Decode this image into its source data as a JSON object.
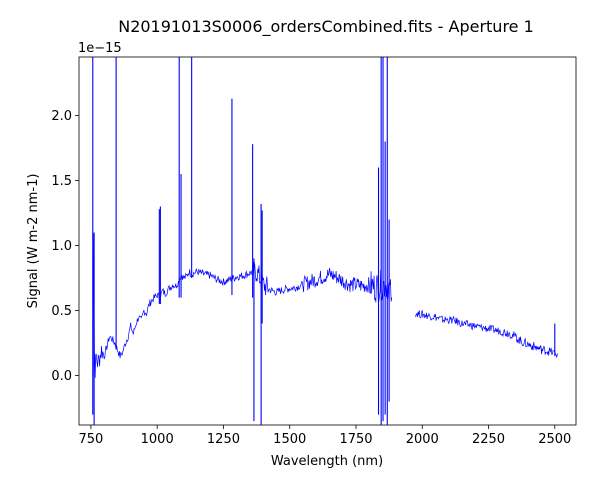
{
  "chart_data": {
    "type": "line",
    "title": "N20191013S0006_ordersCombined.fits - Aperture 1",
    "xlabel": "Wavelength (nm)",
    "ylabel": "Signal (W m-2 nm-1)",
    "y_offset_label": "1e−15",
    "xlim": [
      705,
      2580
    ],
    "ylim": [
      -0.38,
      2.45
    ],
    "x_ticks": [
      750,
      1000,
      1250,
      1500,
      1750,
      2000,
      2250,
      2500
    ],
    "y_ticks": [
      0.0,
      0.5,
      1.0,
      1.5,
      2.0
    ],
    "x_tick_labels": [
      "750",
      "1000",
      "1250",
      "1500",
      "1750",
      "2000",
      "2250",
      "2500"
    ],
    "y_tick_labels": [
      "0.0",
      "0.5",
      "1.0",
      "1.5",
      "2.0"
    ],
    "grid": false,
    "series_color": "#0000ff",
    "series": [
      {
        "segments": [
          {
            "x": [
              757,
              760,
              763,
              766,
              770,
              775,
              780,
              790,
              800,
              810,
              820,
              830,
              840,
              850,
              860,
              870,
              880,
              890,
              900,
              910,
              920,
              930,
              940,
              950,
              960,
              970,
              980,
              990,
              1000,
              1010,
              1020,
              1030,
              1040,
              1050,
              1060,
              1070,
              1080,
              1090,
              1100,
              1110,
              1120,
              1130,
              1140,
              1150,
              1175,
              1200,
              1225,
              1250,
              1275,
              1300,
              1325,
              1350,
              1375,
              1400,
              1425,
              1450,
              1475,
              1500,
              1525,
              1550,
              1575,
              1600,
              1625,
              1650,
              1675,
              1700,
              1725,
              1750,
              1775,
              1800,
              1825,
              1850,
              1870,
              1885
            ],
            "y": [
              0.0,
              1.15,
              0.2,
              0.05,
              0.15,
              0.1,
              0.12,
              0.2,
              0.15,
              0.22,
              0.3,
              0.28,
              0.25,
              0.2,
              0.15,
              0.18,
              0.25,
              0.3,
              0.38,
              0.32,
              0.4,
              0.45,
              0.42,
              0.5,
              0.48,
              0.55,
              0.58,
              0.6,
              0.62,
              0.6,
              0.65,
              0.63,
              0.66,
              0.68,
              0.7,
              0.69,
              0.72,
              0.78,
              0.75,
              0.76,
              0.8,
              0.78,
              0.79,
              0.8,
              0.78,
              0.77,
              0.74,
              0.72,
              0.74,
              0.76,
              0.77,
              0.79,
              0.8,
              0.7,
              0.66,
              0.64,
              0.66,
              0.67,
              0.68,
              0.7,
              0.72,
              0.74,
              0.76,
              0.78,
              0.76,
              0.73,
              0.7,
              0.7,
              0.69,
              0.7,
              0.68,
              0.7,
              0.7,
              0.6
            ]
          },
          {
            "x": [
              1975,
              2000,
              2025,
              2050,
              2075,
              2100,
              2125,
              2150,
              2175,
              2200,
              2225,
              2250,
              2275,
              2300,
              2325,
              2350,
              2375,
              2400,
              2425,
              2450,
              2475,
              2500,
              2510
            ],
            "y": [
              0.48,
              0.47,
              0.46,
              0.45,
              0.43,
              0.43,
              0.42,
              0.4,
              0.39,
              0.38,
              0.37,
              0.36,
              0.35,
              0.34,
              0.33,
              0.3,
              0.26,
              0.24,
              0.22,
              0.2,
              0.19,
              0.17,
              0.17
            ]
          }
        ],
        "spikes": [
          {
            "x": 757,
            "from": -0.3,
            "to": 2.45
          },
          {
            "x": 762,
            "from": -0.38,
            "to": 1.1
          },
          {
            "x": 845,
            "from": 0.2,
            "to": 2.45
          },
          {
            "x": 1008,
            "from": 0.55,
            "to": 1.28
          },
          {
            "x": 1012,
            "from": 0.55,
            "to": 1.3
          },
          {
            "x": 1083,
            "from": 0.6,
            "to": 2.45
          },
          {
            "x": 1090,
            "from": 0.6,
            "to": 1.55
          },
          {
            "x": 1130,
            "from": 0.75,
            "to": 2.45
          },
          {
            "x": 1282,
            "from": 0.62,
            "to": 2.13
          },
          {
            "x": 1360,
            "from": 0.6,
            "to": 1.78
          },
          {
            "x": 1365,
            "from": -0.35,
            "to": 0.9
          },
          {
            "x": 1392,
            "from": -0.38,
            "to": 1.32
          },
          {
            "x": 1396,
            "from": 0.4,
            "to": 1.27
          },
          {
            "x": 1835,
            "from": -0.3,
            "to": 1.6
          },
          {
            "x": 1845,
            "from": -0.38,
            "to": 2.45
          },
          {
            "x": 1852,
            "from": -0.35,
            "to": 2.45
          },
          {
            "x": 1860,
            "from": -0.3,
            "to": 1.8
          },
          {
            "x": 1868,
            "from": -0.38,
            "to": 2.45
          },
          {
            "x": 1875,
            "from": -0.2,
            "to": 1.2
          },
          {
            "x": 2500,
            "from": 0.15,
            "to": 0.4
          }
        ]
      }
    ]
  }
}
